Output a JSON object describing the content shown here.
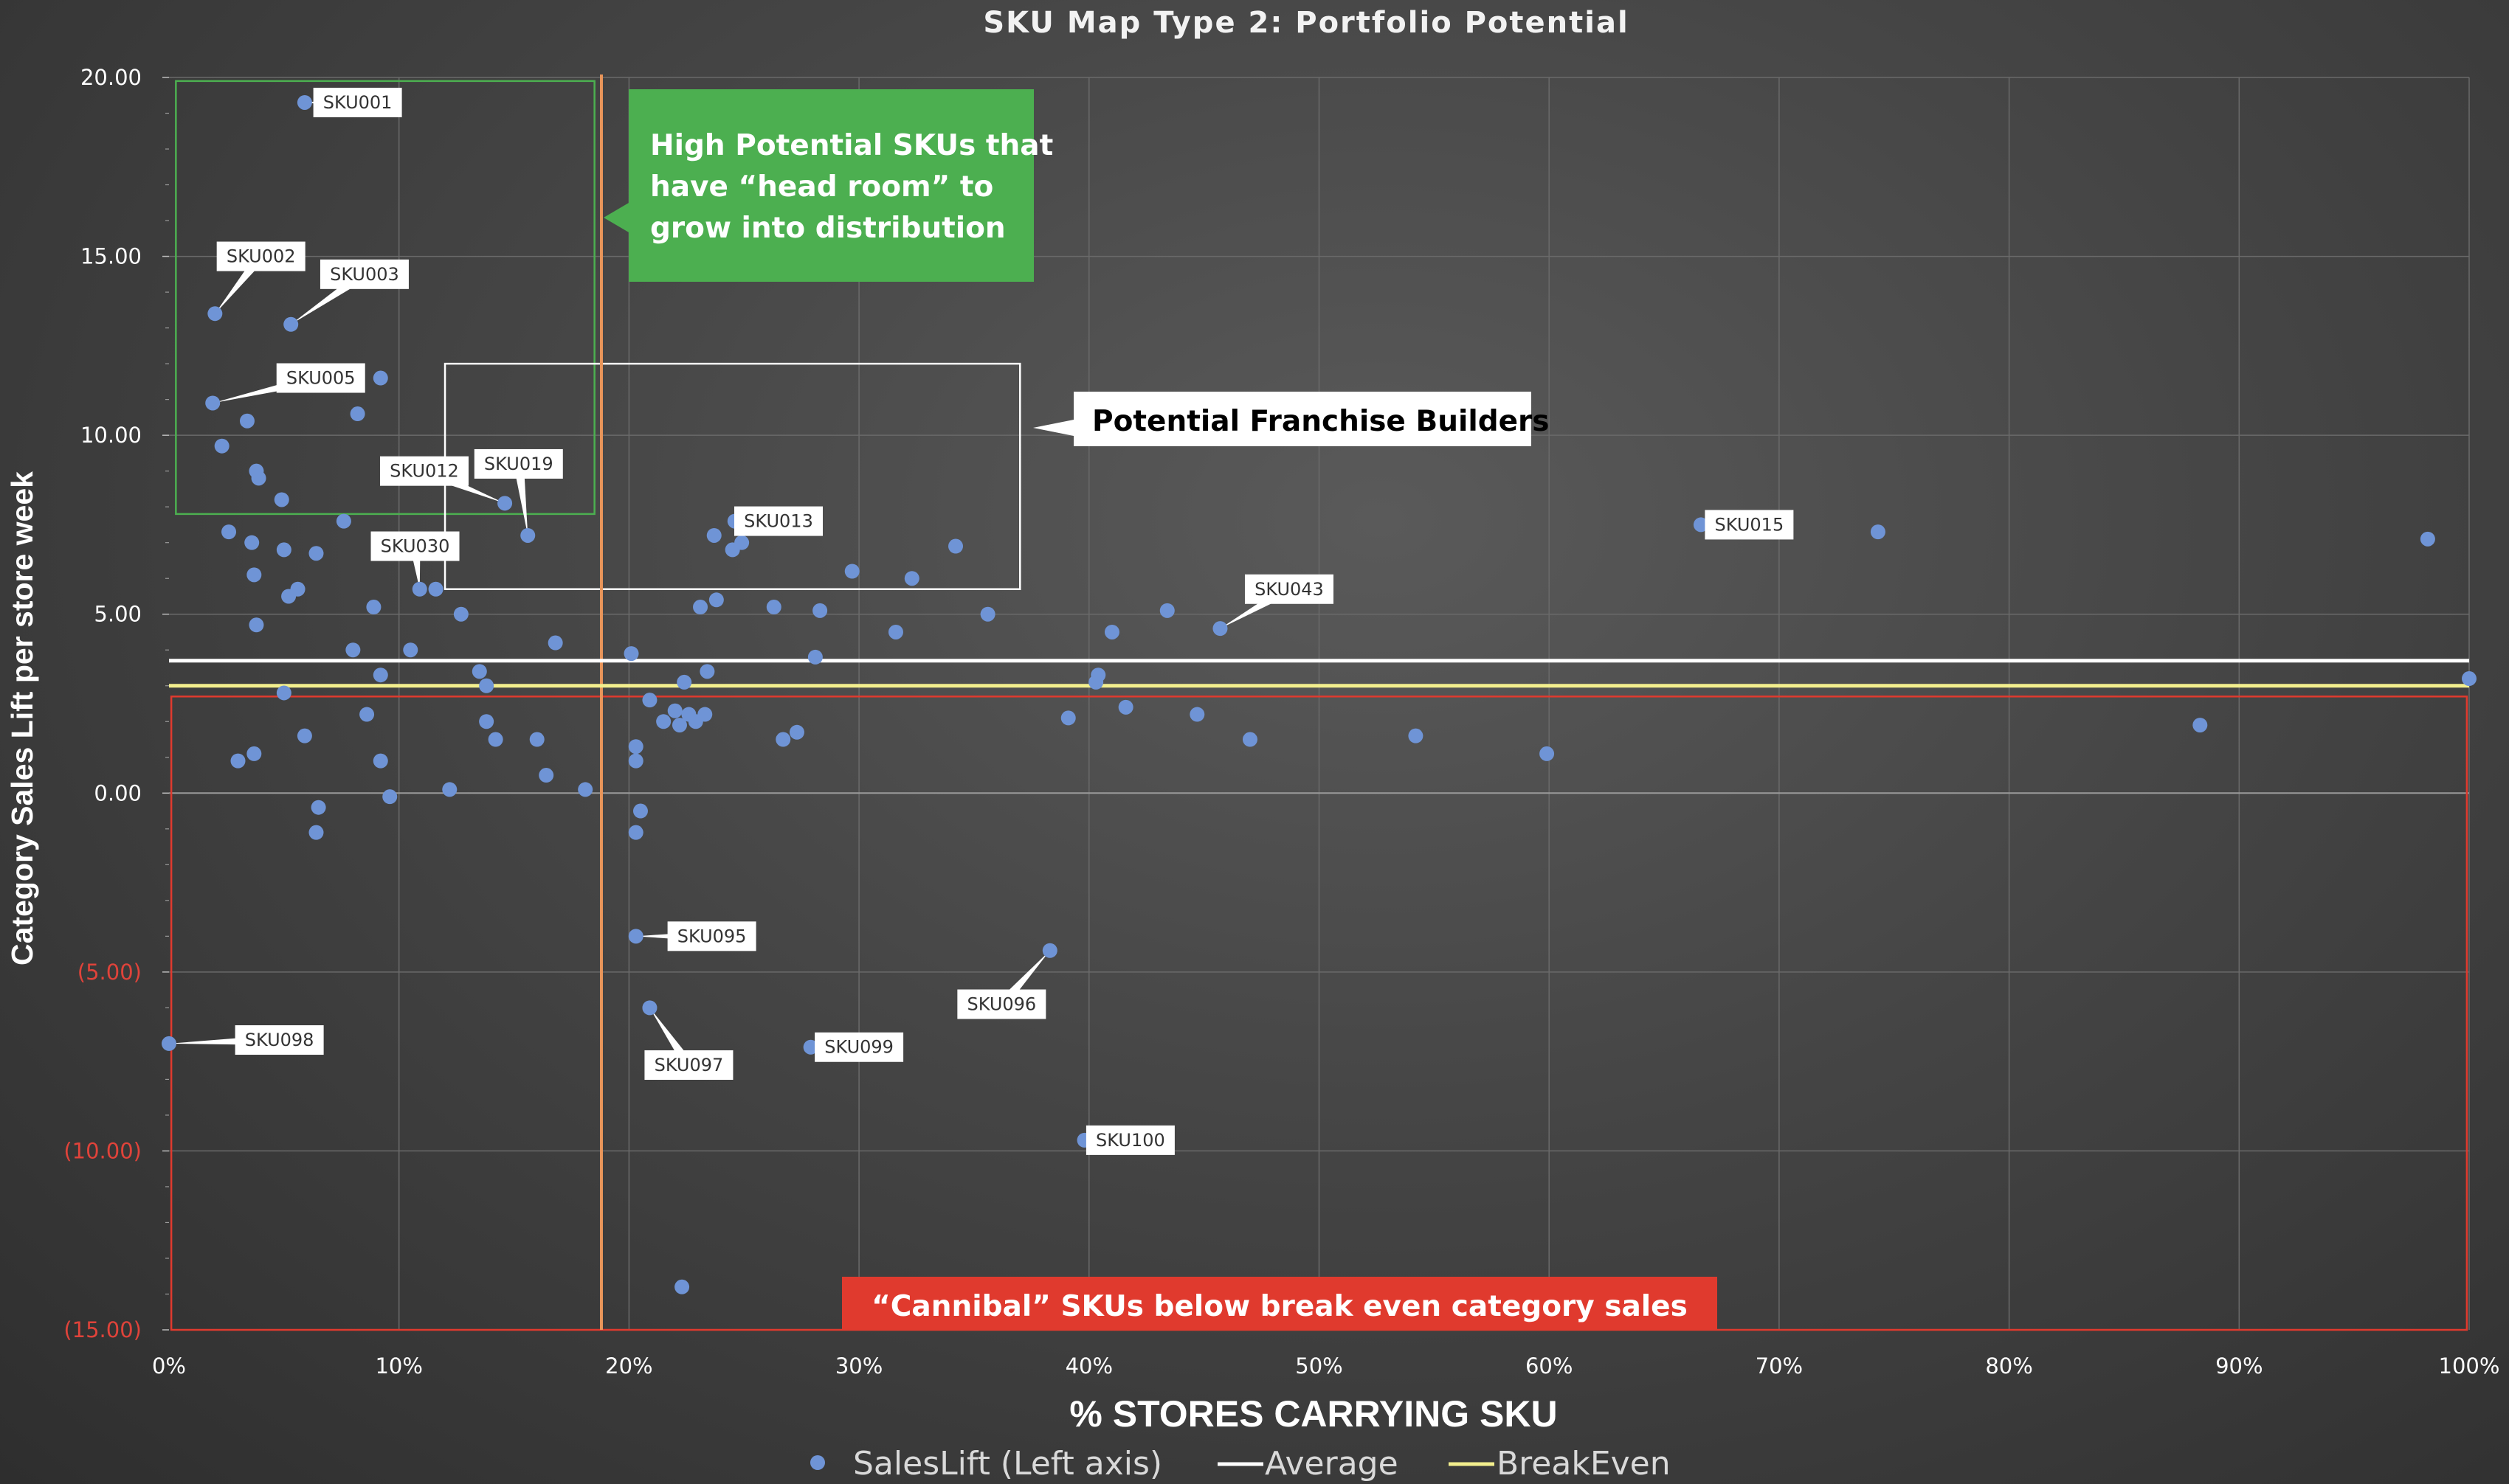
{
  "colors": {
    "point": "#6f94d6",
    "average": "#ffffff",
    "breakeven": "#f3ef8e",
    "axis_positive": "#ffffff",
    "axis_negative": "#e0433a",
    "green_box": "#4caf50",
    "red_box": "#e03a2e",
    "orange_line": "#e8955a",
    "white_box": "#ffffff"
  },
  "chart_data": {
    "type": "scatter",
    "title": "SKU Map Type 2: Portfolio Potential",
    "xlabel": "% STORES CARRYING SKU",
    "ylabel": "Category Sales Lift per store week",
    "xlim": [
      0,
      100
    ],
    "ylim": [
      -15,
      20
    ],
    "x_ticks": [
      "0%",
      "10%",
      "20%",
      "30%",
      "40%",
      "50%",
      "60%",
      "70%",
      "80%",
      "90%",
      "100%"
    ],
    "y_ticks": [
      {
        "value": 20,
        "label": "20.00"
      },
      {
        "value": 15,
        "label": "15.00"
      },
      {
        "value": 10,
        "label": "10.00"
      },
      {
        "value": 5,
        "label": "5.00"
      },
      {
        "value": 0,
        "label": "0.00"
      },
      {
        "value": -5,
        "label": "(5.00)"
      },
      {
        "value": -10,
        "label": "(10.00)"
      },
      {
        "value": -15,
        "label": "(15.00)"
      }
    ],
    "average": 3.7,
    "breakeven": 3.0,
    "distribution_threshold": 18.8,
    "legend": [
      "SalesLift (Left axis)",
      "Average",
      "BreakEven"
    ],
    "labeled_points": [
      {
        "name": "SKU001",
        "x": 5.9,
        "y": 19.3,
        "lx": 8.2,
        "ly": 19.3
      },
      {
        "name": "SKU002",
        "x": 2.0,
        "y": 13.4,
        "lx": 4.0,
        "ly": 15.0
      },
      {
        "name": "SKU003",
        "x": 5.3,
        "y": 13.1,
        "lx": 8.5,
        "ly": 14.5
      },
      {
        "name": "SKU005",
        "x": 1.9,
        "y": 10.9,
        "lx": 6.6,
        "ly": 11.6
      },
      {
        "name": "SKU012",
        "x": 14.6,
        "y": 8.1,
        "lx": 11.1,
        "ly": 9.0
      },
      {
        "name": "SKU019",
        "x": 15.6,
        "y": 7.2,
        "lx": 15.2,
        "ly": 9.2
      },
      {
        "name": "SKU030",
        "x": 10.9,
        "y": 5.7,
        "lx": 10.7,
        "ly": 6.9
      },
      {
        "name": "SKU013",
        "x": 24.6,
        "y": 7.6,
        "lx": 26.5,
        "ly": 7.6
      },
      {
        "name": "SKU015",
        "x": 66.6,
        "y": 7.5,
        "lx": 68.7,
        "ly": 7.5
      },
      {
        "name": "SKU043",
        "x": 45.7,
        "y": 4.6,
        "lx": 48.7,
        "ly": 5.7
      },
      {
        "name": "SKU095",
        "x": 20.3,
        "y": -4.0,
        "lx": 23.6,
        "ly": -4.0
      },
      {
        "name": "SKU096",
        "x": 38.3,
        "y": -4.4,
        "lx": 36.2,
        "ly": -5.9
      },
      {
        "name": "SKU097",
        "x": 20.9,
        "y": -6.0,
        "lx": 22.6,
        "ly": -7.6
      },
      {
        "name": "SKU098",
        "x": 0.0,
        "y": -7.0,
        "lx": 4.8,
        "ly": -6.9
      },
      {
        "name": "SKU099",
        "x": 27.9,
        "y": -7.1,
        "lx": 30.0,
        "ly": -7.1
      },
      {
        "name": "SKU100",
        "x": 39.8,
        "y": -9.7,
        "lx": 41.8,
        "ly": -9.7
      }
    ],
    "points": [
      [
        2.3,
        9.7
      ],
      [
        3.4,
        10.4
      ],
      [
        3.8,
        9.0
      ],
      [
        3.9,
        8.8
      ],
      [
        4.9,
        8.2
      ],
      [
        9.2,
        11.6
      ],
      [
        8.2,
        10.6
      ],
      [
        2.6,
        7.3
      ],
      [
        3.6,
        7.0
      ],
      [
        5.0,
        6.8
      ],
      [
        6.4,
        6.7
      ],
      [
        7.6,
        7.6
      ],
      [
        3.7,
        6.1
      ],
      [
        5.2,
        5.5
      ],
      [
        5.6,
        5.7
      ],
      [
        3.8,
        4.7
      ],
      [
        8.9,
        5.2
      ],
      [
        11.6,
        5.7
      ],
      [
        12.7,
        5.0
      ],
      [
        8.0,
        4.0
      ],
      [
        9.2,
        3.3
      ],
      [
        10.5,
        4.0
      ],
      [
        13.5,
        3.4
      ],
      [
        13.8,
        3.0
      ],
      [
        16.8,
        4.2
      ],
      [
        5.0,
        2.8
      ],
      [
        8.6,
        2.2
      ],
      [
        5.9,
        1.6
      ],
      [
        3.0,
        0.9
      ],
      [
        3.7,
        1.1
      ],
      [
        9.2,
        0.9
      ],
      [
        13.8,
        2.0
      ],
      [
        14.2,
        1.5
      ],
      [
        16.0,
        1.5
      ],
      [
        16.4,
        0.5
      ],
      [
        18.1,
        0.1
      ],
      [
        12.2,
        0.1
      ],
      [
        9.6,
        -0.1
      ],
      [
        6.5,
        -0.4
      ],
      [
        6.4,
        -1.1
      ],
      [
        20.1,
        3.9
      ],
      [
        22.4,
        3.1
      ],
      [
        23.4,
        3.4
      ],
      [
        23.1,
        5.2
      ],
      [
        23.8,
        5.4
      ],
      [
        26.3,
        5.2
      ],
      [
        28.3,
        5.1
      ],
      [
        28.1,
        3.8
      ],
      [
        23.7,
        7.2
      ],
      [
        24.5,
        6.8
      ],
      [
        24.9,
        7.0
      ],
      [
        29.7,
        6.2
      ],
      [
        32.3,
        6.0
      ],
      [
        34.2,
        6.9
      ],
      [
        31.6,
        4.5
      ],
      [
        35.6,
        5.0
      ],
      [
        20.9,
        2.6
      ],
      [
        21.5,
        2.0
      ],
      [
        22.0,
        2.3
      ],
      [
        22.2,
        1.9
      ],
      [
        22.6,
        2.2
      ],
      [
        22.9,
        2.0
      ],
      [
        23.3,
        2.2
      ],
      [
        20.3,
        1.3
      ],
      [
        20.3,
        0.9
      ],
      [
        20.5,
        -0.5
      ],
      [
        20.3,
        -1.1
      ],
      [
        26.7,
        1.5
      ],
      [
        27.3,
        1.7
      ],
      [
        39.1,
        2.1
      ],
      [
        40.3,
        3.1
      ],
      [
        40.4,
        3.3
      ],
      [
        41.0,
        4.5
      ],
      [
        43.4,
        5.1
      ],
      [
        41.6,
        2.4
      ],
      [
        44.7,
        2.2
      ],
      [
        47.0,
        1.5
      ],
      [
        54.2,
        1.6
      ],
      [
        59.9,
        1.1
      ],
      [
        74.3,
        7.3
      ],
      [
        98.2,
        7.1
      ],
      [
        88.3,
        1.9
      ],
      [
        100.0,
        3.2
      ],
      [
        22.3,
        -13.8
      ]
    ]
  },
  "annotations": {
    "green_box_text": [
      "High Potential SKUs that",
      "have “head room” to",
      "grow into distribution"
    ],
    "white_box_text": "Potential Franchise Builders",
    "red_box_text": "“Cannibal” SKUs below break even category sales"
  }
}
